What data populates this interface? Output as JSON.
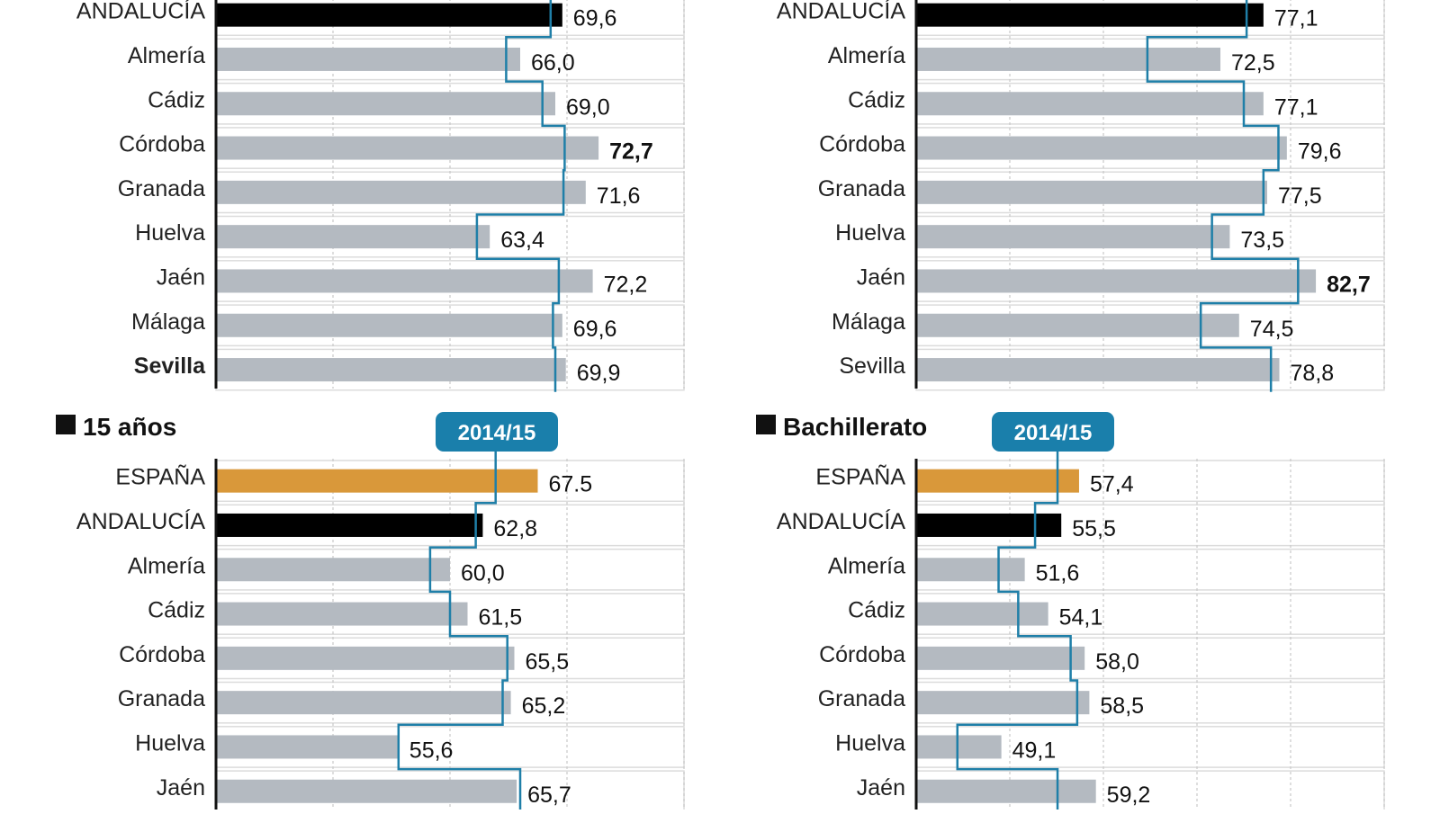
{
  "colors": {
    "espana": "#d9983a",
    "andalucia": "#000000",
    "province": "#b4bac1",
    "line": "#1f7fa8",
    "tag": "#1a7fab",
    "grid": "#c8c8c8"
  },
  "chart_data": [
    {
      "type": "bar",
      "title": "",
      "xlim": [
        40,
        80
      ],
      "grid": true,
      "categories": [
        "ANDALUCÍA",
        "Almería",
        "Cádiz",
        "Córdoba",
        "Granada",
        "Huelva",
        "Jaén",
        "Málaga",
        "Sevilla"
      ],
      "values": [
        69.6,
        66.0,
        69.0,
        72.7,
        71.6,
        63.4,
        72.2,
        69.6,
        69.9
      ],
      "value_labels": [
        "69,6",
        "66,0",
        "69,0",
        "72,7",
        "71,6",
        "63,4",
        "72,2",
        "69,6",
        "69,9"
      ],
      "bold_values": [
        false,
        false,
        false,
        true,
        false,
        false,
        false,
        false,
        false
      ],
      "bold_labels": [
        false,
        false,
        false,
        false,
        false,
        false,
        false,
        false,
        true
      ],
      "step_line": [
        68.6,
        64.8,
        67.9,
        69.8,
        69.7,
        62.3,
        69.3,
        68.8,
        69.0
      ]
    },
    {
      "type": "bar",
      "title": "",
      "xlim": [
        40,
        90
      ],
      "grid": true,
      "categories": [
        "ANDALUCÍA",
        "Almería",
        "Cádiz",
        "Córdoba",
        "Granada",
        "Huelva",
        "Jaén",
        "Málaga",
        "Sevilla"
      ],
      "values": [
        77.1,
        72.5,
        77.1,
        79.6,
        77.5,
        73.5,
        82.7,
        74.5,
        78.8
      ],
      "value_labels": [
        "77,1",
        "72,5",
        "77,1",
        "79,6",
        "77,5",
        "73,5",
        "82,7",
        "74,5",
        "78,8"
      ],
      "bold_values": [
        false,
        false,
        false,
        false,
        false,
        false,
        true,
        false,
        false
      ],
      "bold_labels": [
        false,
        false,
        false,
        false,
        false,
        false,
        false,
        false,
        false
      ],
      "step_line": [
        75.3,
        64.7,
        75.0,
        78.7,
        77.1,
        71.6,
        80.8,
        70.4,
        77.9
      ]
    },
    {
      "type": "bar",
      "title": "15 años",
      "step_label": "2014/15",
      "xlim": [
        40,
        80
      ],
      "grid": true,
      "categories": [
        "ESPAÑA",
        "ANDALUCÍA",
        "Almería",
        "Cádiz",
        "Córdoba",
        "Granada",
        "Huelva",
        "Jaén"
      ],
      "values": [
        67.5,
        62.8,
        60.0,
        61.5,
        65.5,
        65.2,
        55.6,
        65.7
      ],
      "value_labels": [
        "67.5",
        "62,8",
        "60,0",
        "61,5",
        "65,5",
        "65,2",
        "55,6",
        "65,7"
      ],
      "bold_values": [
        false,
        false,
        false,
        false,
        false,
        false,
        false,
        false
      ],
      "bold_labels": [
        false,
        false,
        false,
        false,
        false,
        false,
        false,
        false
      ],
      "step_line": [
        63.9,
        62.2,
        58.3,
        60.0,
        64.9,
        64.5,
        55.6,
        66.0
      ]
    },
    {
      "type": "bar",
      "title": "Bachillerato",
      "step_label": "2014/15",
      "xlim": [
        40,
        90
      ],
      "grid": true,
      "categories": [
        "ESPAÑA",
        "ANDALUCÍA",
        "Almería",
        "Cádiz",
        "Córdoba",
        "Granada",
        "Huelva",
        "Jaén"
      ],
      "values": [
        57.4,
        55.5,
        51.6,
        54.1,
        58.0,
        58.5,
        49.1,
        59.2
      ],
      "value_labels": [
        "57,4",
        "55,5",
        "51,6",
        "54,1",
        "58,0",
        "58,5",
        "49,1",
        "59,2"
      ],
      "bold_values": [
        false,
        false,
        false,
        false,
        false,
        false,
        false,
        false
      ],
      "bold_labels": [
        false,
        false,
        false,
        false,
        false,
        false,
        false,
        false
      ],
      "step_line": [
        55.1,
        52.7,
        48.8,
        50.9,
        56.5,
        57.2,
        44.4,
        55.1
      ]
    }
  ]
}
